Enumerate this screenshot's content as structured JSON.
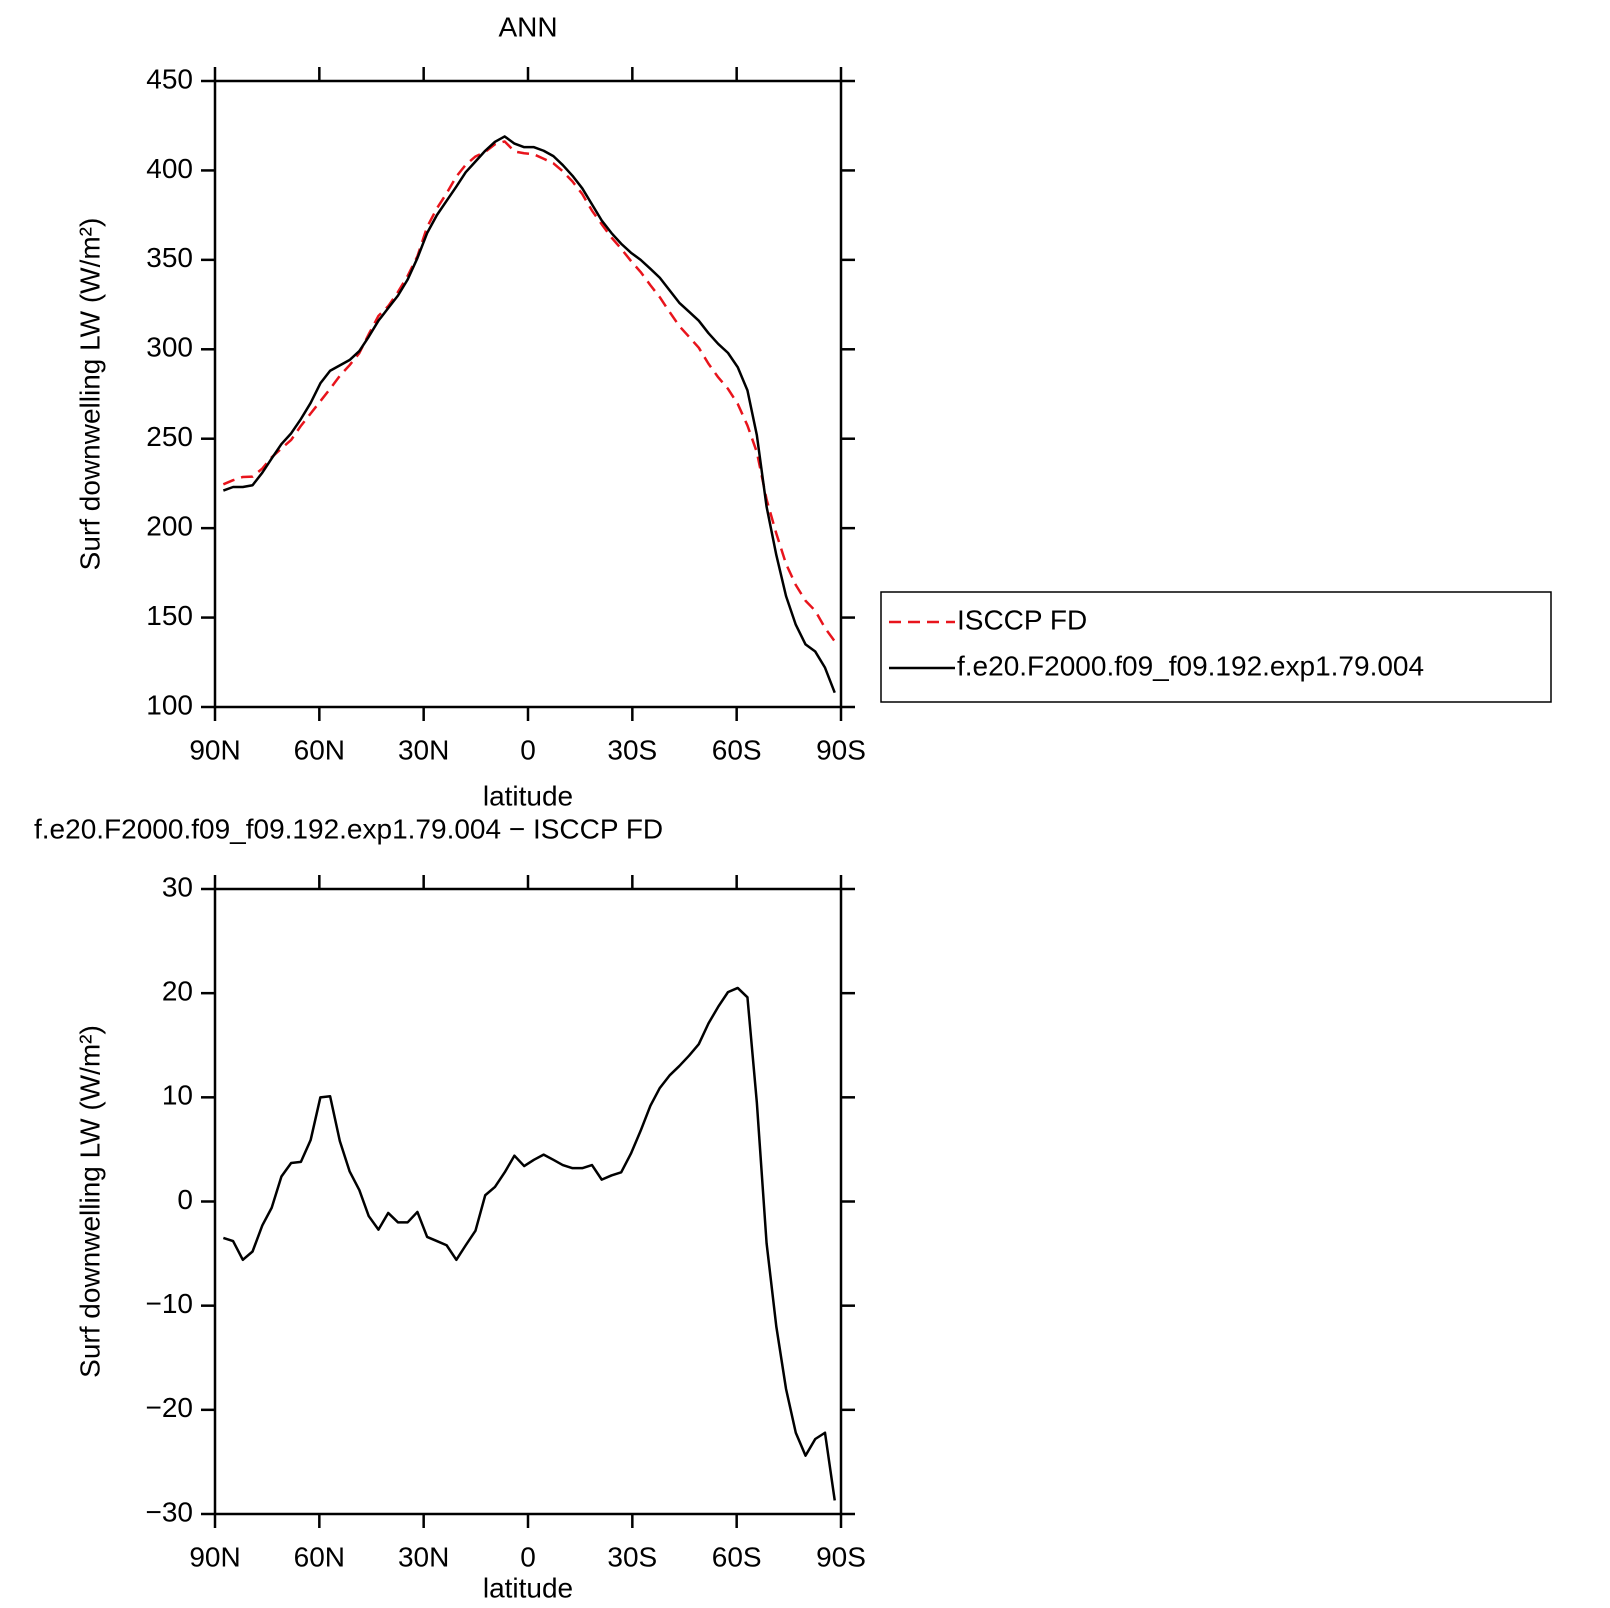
{
  "chart_data": [
    {
      "type": "line",
      "title": "ANN",
      "xlabel": "latitude",
      "ylabel": "Surf downwelling LW (W/m²)",
      "x": [
        87.6,
        84.8,
        82.0,
        79.2,
        76.4,
        73.7,
        70.9,
        68.1,
        65.3,
        62.5,
        59.7,
        56.9,
        54.1,
        51.3,
        48.5,
        45.8,
        43.0,
        40.2,
        37.4,
        34.6,
        31.8,
        29.0,
        26.2,
        23.4,
        20.6,
        17.9,
        15.1,
        12.3,
        9.5,
        6.7,
        3.9,
        1.1,
        -1.7,
        -4.5,
        -7.3,
        -10.0,
        -12.8,
        -15.6,
        -18.4,
        -21.2,
        -24.0,
        -26.8,
        -29.6,
        -32.4,
        -35.2,
        -37.9,
        -40.7,
        -43.5,
        -46.3,
        -49.1,
        -51.9,
        -54.7,
        -57.5,
        -60.3,
        -63.1,
        -65.8,
        -68.6,
        -71.4,
        -74.2,
        -77.0,
        -79.8,
        -82.6,
        -85.4,
        -88.2
      ],
      "series": [
        {
          "name": "ISCCP FD",
          "color": "#e8141c",
          "linestyle": "dashed",
          "values": [
            224.5,
            226.8,
            228.6,
            228.8,
            233.3,
            239.6,
            244.6,
            249.3,
            257.2,
            264.1,
            271,
            277.9,
            285.2,
            291.1,
            297.9,
            308.4,
            318.7,
            324.1,
            332,
            341,
            352,
            368.4,
            378.8,
            387.2,
            396.6,
            403.2,
            407.8,
            410.4,
            414.6,
            416.2,
            410.6,
            409.6,
            409,
            406.5,
            404,
            399.5,
            393.8,
            386.8,
            377.5,
            369.9,
            362.5,
            356.2,
            349.4,
            343.2,
            335.8,
            329.1,
            320.9,
            313,
            307,
            300.9,
            291.9,
            284.3,
            277.9,
            269.5,
            257.4,
            242.5,
            216,
            197,
            180,
            168.2,
            159.4,
            153.8,
            144.2,
            136.7
          ]
        },
        {
          "name": "f.e20.F2000.f09_f09.192.exp1.79.004",
          "color": "#000000",
          "linestyle": "solid",
          "values": [
            221,
            223,
            223,
            224,
            231,
            239,
            247,
            253,
            261,
            270,
            281,
            288,
            291,
            294,
            299,
            307,
            316,
            323,
            330,
            339,
            351,
            365,
            375,
            383,
            391,
            399,
            405,
            411,
            416,
            419,
            415,
            413,
            413,
            411,
            408,
            403,
            397,
            390,
            381,
            372,
            365,
            359,
            354,
            350,
            345,
            340,
            333,
            326,
            321,
            316,
            309,
            303,
            298,
            290,
            277,
            252,
            212,
            185,
            162,
            146,
            135,
            131,
            122,
            108
          ]
        }
      ],
      "xlim": [
        90,
        -90
      ],
      "xticks": [
        {
          "value": 90,
          "label": "90N"
        },
        {
          "value": 60,
          "label": "60N"
        },
        {
          "value": 30,
          "label": "30N"
        },
        0,
        {
          "value": -30,
          "label": "30S"
        },
        {
          "value": -60,
          "label": "60S"
        },
        {
          "value": -90,
          "label": "90S"
        }
      ],
      "ylim": [
        100,
        450
      ],
      "yticks": [
        100,
        150,
        200,
        250,
        300,
        350,
        400,
        450
      ],
      "legend": "outside-right"
    },
    {
      "type": "line",
      "title": "f.e20.F2000.f09_f09.192.exp1.79.004 − ISCCP FD",
      "xlabel": "latitude",
      "ylabel": "Surf downwelling LW (W/m²)",
      "x": [
        87.6,
        84.8,
        82.0,
        79.2,
        76.4,
        73.7,
        70.9,
        68.1,
        65.3,
        62.5,
        59.7,
        56.9,
        54.1,
        51.3,
        48.5,
        45.8,
        43.0,
        40.2,
        37.4,
        34.6,
        31.8,
        29.0,
        26.2,
        23.4,
        20.6,
        17.9,
        15.1,
        12.3,
        9.5,
        6.7,
        3.9,
        1.1,
        -1.7,
        -4.5,
        -7.3,
        -10.0,
        -12.8,
        -15.6,
        -18.4,
        -21.2,
        -24.0,
        -26.8,
        -29.6,
        -32.4,
        -35.2,
        -37.9,
        -40.7,
        -43.5,
        -46.3,
        -49.1,
        -51.9,
        -54.7,
        -57.5,
        -60.3,
        -63.1,
        -65.8,
        -68.6,
        -71.4,
        -74.2,
        -77.0,
        -79.8,
        -82.6,
        -85.4,
        -88.2
      ],
      "series": [
        {
          "color": "#000000",
          "linestyle": "solid",
          "values": [
            -3.5,
            -3.8,
            -5.6,
            -4.8,
            -2.3,
            -0.6,
            2.4,
            3.7,
            3.8,
            5.9,
            10,
            10.1,
            5.8,
            2.9,
            1.1,
            -1.4,
            -2.7,
            -1.1,
            -2,
            -2,
            -1,
            -3.4,
            -3.8,
            -4.2,
            -5.6,
            -4.2,
            -2.8,
            0.6,
            1.4,
            2.8,
            4.4,
            3.4,
            4,
            4.5,
            4,
            3.5,
            3.2,
            3.2,
            3.5,
            2.1,
            2.5,
            2.8,
            4.6,
            6.8,
            9.2,
            10.9,
            12.1,
            13,
            14,
            15.1,
            17.1,
            18.7,
            20.1,
            20.5,
            19.6,
            9.5,
            -4,
            -12,
            -18,
            -22.2,
            -24.4,
            -22.8,
            -22.2,
            -28.7
          ]
        }
      ],
      "xlim": [
        90,
        -90
      ],
      "xticks": [
        {
          "value": 90,
          "label": "90N"
        },
        {
          "value": 60,
          "label": "60N"
        },
        {
          "value": 30,
          "label": "30N"
        },
        0,
        {
          "value": -30,
          "label": "30S"
        },
        {
          "value": -60,
          "label": "60S"
        },
        {
          "value": -90,
          "label": "90S"
        }
      ],
      "ylim": [
        -30,
        30
      ],
      "yticks": [
        {
          "value": -30,
          "label": "−30"
        },
        {
          "value": -20,
          "label": "−20"
        },
        {
          "value": -10,
          "label": "−10"
        },
        0,
        10,
        20,
        30
      ]
    }
  ]
}
